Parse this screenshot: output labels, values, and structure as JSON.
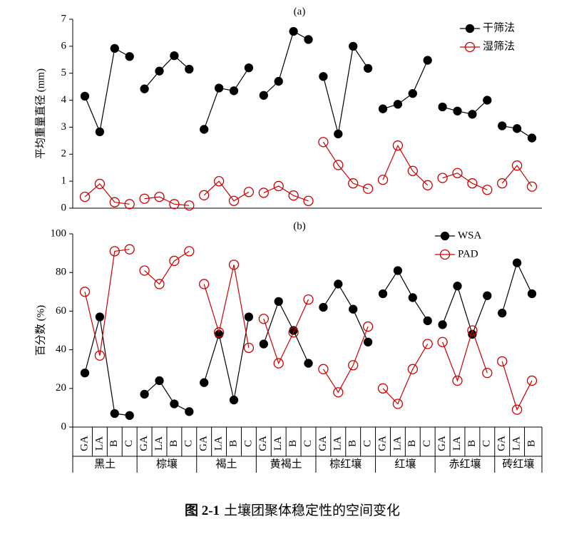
{
  "chart_data": [
    {
      "type": "line",
      "title": "(a)",
      "y_label": "平均重量直径 (mm)",
      "ylim": [
        0,
        7
      ],
      "yticks": [
        0,
        1,
        2,
        3,
        4,
        5,
        6,
        7
      ],
      "legend": "top-right",
      "series": [
        {
          "name": "干筛法",
          "color": "#000000",
          "marker": "filled",
          "values": [
            4.15,
            2.83,
            5.92,
            5.62,
            4.42,
            5.08,
            5.65,
            5.15,
            2.92,
            4.45,
            4.35,
            5.2,
            4.18,
            4.7,
            6.55,
            6.25,
            4.88,
            2.75,
            6.0,
            5.18,
            3.68,
            3.85,
            4.25,
            5.48,
            3.75,
            3.6,
            3.48,
            4.0,
            3.05,
            2.95,
            2.6
          ]
        },
        {
          "name": "湿筛法",
          "color": "#cc0000",
          "marker": "open",
          "values": [
            0.42,
            0.9,
            0.22,
            0.15,
            0.35,
            0.42,
            0.15,
            0.1,
            0.48,
            1.0,
            0.27,
            0.6,
            0.57,
            0.82,
            0.47,
            0.27,
            2.45,
            1.6,
            0.92,
            0.72,
            1.05,
            2.32,
            1.38,
            0.85,
            1.12,
            1.3,
            0.92,
            0.68,
            0.92,
            1.58,
            0.8
          ]
        }
      ]
    },
    {
      "type": "line",
      "title": "(b)",
      "y_label": "百分数 (%)",
      "ylim": [
        0,
        100
      ],
      "yticks": [
        0,
        20,
        40,
        60,
        80,
        100
      ],
      "legend": "top-right",
      "series": [
        {
          "name": "WSA",
          "color": "#000000",
          "marker": "filled",
          "values": [
            28,
            57,
            7,
            6,
            17,
            24,
            12,
            8,
            23,
            48,
            14,
            57,
            43,
            65,
            50,
            33,
            62,
            74,
            61,
            44,
            69,
            81,
            67,
            55,
            53,
            73,
            48,
            68,
            59,
            85,
            69
          ]
        },
        {
          "name": "PAD",
          "color": "#cc0000",
          "marker": "open",
          "values": [
            70,
            37,
            91,
            92,
            81,
            74,
            86,
            91,
            74,
            49,
            84,
            41,
            56,
            33,
            49,
            66,
            30,
            18,
            32,
            52,
            20,
            12,
            30,
            43,
            44,
            24,
            50,
            28,
            34,
            9,
            24
          ]
        }
      ]
    }
  ],
  "x_axis": {
    "groups": [
      {
        "label": "黑土",
        "categories": [
          "GA",
          "LA",
          "B",
          "C"
        ]
      },
      {
        "label": "棕壤",
        "categories": [
          "GA",
          "LA",
          "B",
          "C"
        ]
      },
      {
        "label": "褐土",
        "categories": [
          "GA",
          "LA",
          "B",
          "C"
        ]
      },
      {
        "label": "黄褐土",
        "categories": [
          "GA",
          "LA",
          "B",
          "C"
        ]
      },
      {
        "label": "棕红壤",
        "categories": [
          "GA",
          "LA",
          "B",
          "C"
        ]
      },
      {
        "label": "红壤",
        "categories": [
          "GA",
          "LA",
          "B",
          "C"
        ]
      },
      {
        "label": "赤红壤",
        "categories": [
          "GA",
          "LA",
          "B",
          "C"
        ]
      },
      {
        "label": "砖红壤",
        "categories": [
          "GA",
          "LA",
          "B"
        ]
      }
    ]
  },
  "caption": {
    "label": "图 2-1",
    "text": "土壤团聚体稳定性的空间变化"
  }
}
